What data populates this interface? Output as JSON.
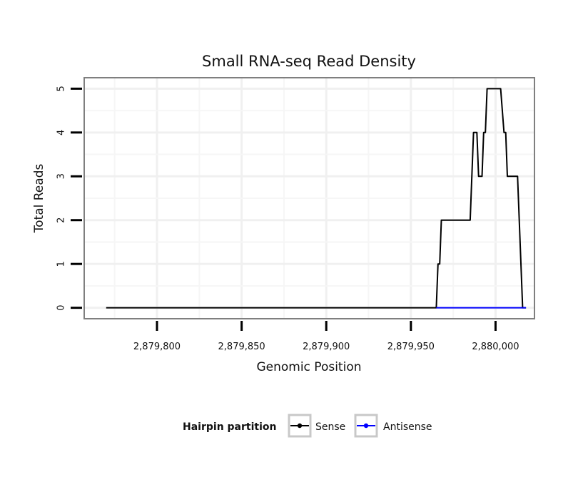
{
  "chart_data": {
    "type": "line",
    "title": "Small RNA-seq Read Density",
    "xlabel": "Genomic Position",
    "ylabel": "Total Reads",
    "xlim": [
      2879757,
      2880023
    ],
    "ylim": [
      -0.25,
      5.25
    ],
    "grid": true,
    "x_ticks": [
      2879800,
      2879850,
      2879900,
      2879950,
      2880000
    ],
    "x_tick_labels": [
      "2,879,800",
      "2,879,850",
      "2,879,900",
      "2,879,950",
      "2,880,000"
    ],
    "y_ticks": [
      0,
      1,
      2,
      3,
      4,
      5
    ],
    "y_tick_labels": [
      "0",
      "1",
      "2",
      "3",
      "4",
      "5"
    ],
    "legend": {
      "title": "Hairpin partition",
      "placement": "bottom"
    },
    "series": [
      {
        "name": "Sense",
        "color": "#000000",
        "points": [
          [
            2879770,
            0
          ],
          [
            2879965,
            0
          ],
          [
            2879966,
            1
          ],
          [
            2879967,
            1
          ],
          [
            2879968,
            2
          ],
          [
            2879985,
            2
          ],
          [
            2879987,
            4
          ],
          [
            2879989,
            4
          ],
          [
            2879990,
            3
          ],
          [
            2879992,
            3
          ],
          [
            2879993,
            4
          ],
          [
            2879994,
            4
          ],
          [
            2879995,
            5
          ],
          [
            2880003,
            5
          ],
          [
            2880005,
            4
          ],
          [
            2880006,
            4
          ],
          [
            2880007,
            3
          ],
          [
            2880013,
            3
          ],
          [
            2880016,
            0
          ],
          [
            2880018,
            0
          ]
        ]
      },
      {
        "name": "Antisense",
        "color": "#0000ff",
        "points": [
          [
            2879965,
            0
          ],
          [
            2880018,
            0
          ]
        ]
      }
    ]
  }
}
